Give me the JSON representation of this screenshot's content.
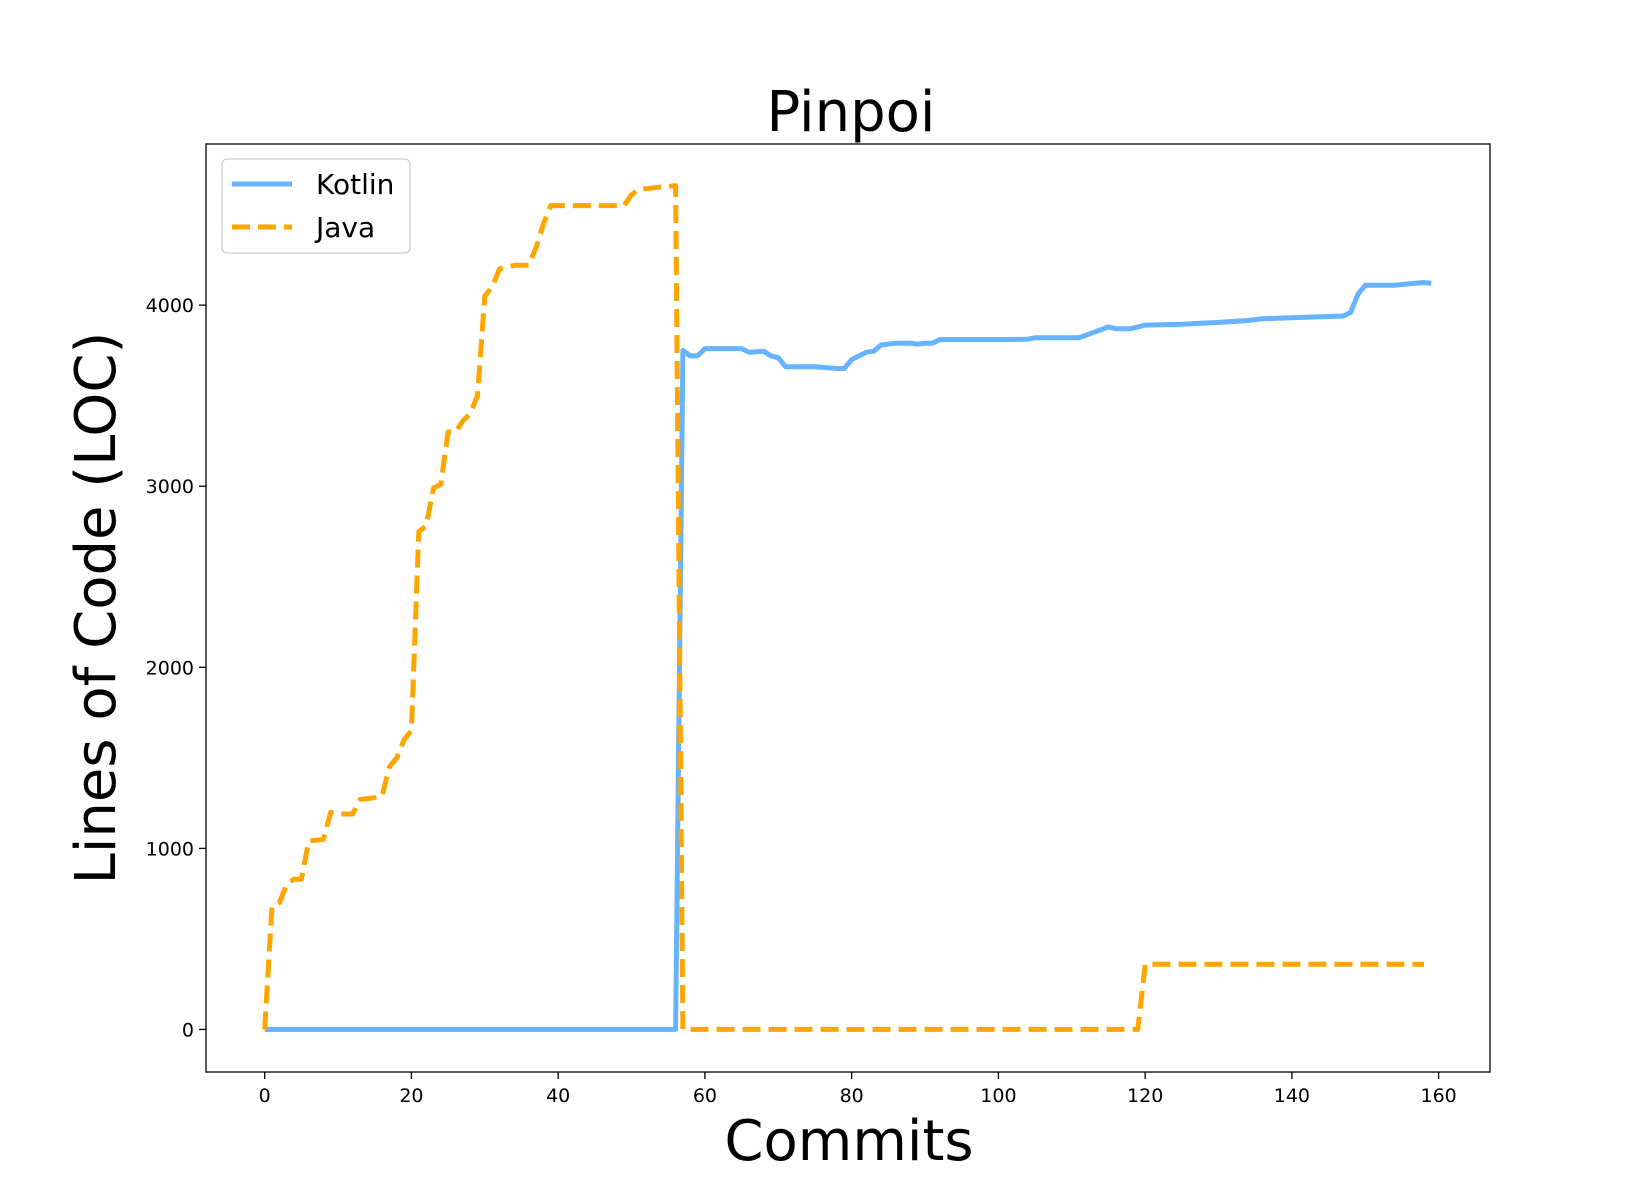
{
  "chart_data": {
    "type": "line",
    "title": "Pinpoi",
    "xlabel": "Commits",
    "ylabel": "Lines of Code (LOC)",
    "xlim": [
      -8,
      167
    ],
    "ylim": [
      -235,
      4890
    ],
    "xticks": [
      0,
      20,
      40,
      60,
      80,
      100,
      120,
      140,
      160
    ],
    "yticks": [
      0,
      1000,
      2000,
      3000,
      4000
    ],
    "grid": false,
    "legend_position": "top-left",
    "series": [
      {
        "name": "Kotlin",
        "color": "#66b3ff",
        "style": "solid",
        "points": [
          [
            0,
            0
          ],
          [
            56,
            0
          ],
          [
            57,
            3750
          ],
          [
            58,
            3720
          ],
          [
            59,
            3720
          ],
          [
            60,
            3760
          ],
          [
            65,
            3760
          ],
          [
            66,
            3740
          ],
          [
            68,
            3745
          ],
          [
            69,
            3720
          ],
          [
            70,
            3710
          ],
          [
            71,
            3660
          ],
          [
            75,
            3660
          ],
          [
            78,
            3650
          ],
          [
            79,
            3650
          ],
          [
            80,
            3700
          ],
          [
            82,
            3740
          ],
          [
            83,
            3745
          ],
          [
            84,
            3780
          ],
          [
            86,
            3790
          ],
          [
            88,
            3790
          ],
          [
            89,
            3785
          ],
          [
            90,
            3790
          ],
          [
            91,
            3790
          ],
          [
            92,
            3810
          ],
          [
            98,
            3810
          ],
          [
            100,
            3810
          ],
          [
            104,
            3812
          ],
          [
            105,
            3820
          ],
          [
            111,
            3820
          ],
          [
            113,
            3850
          ],
          [
            115,
            3880
          ],
          [
            116,
            3870
          ],
          [
            118,
            3870
          ],
          [
            120,
            3890
          ],
          [
            125,
            3895
          ],
          [
            130,
            3905
          ],
          [
            134,
            3915
          ],
          [
            136,
            3925
          ],
          [
            140,
            3930
          ],
          [
            147,
            3940
          ],
          [
            148,
            3960
          ],
          [
            149,
            4060
          ],
          [
            150,
            4110
          ],
          [
            154,
            4110
          ],
          [
            156,
            4118
          ],
          [
            158,
            4125
          ],
          [
            159,
            4120
          ]
        ]
      },
      {
        "name": "Java",
        "color": "#ffa500",
        "style": "dashed",
        "points": [
          [
            0,
            0
          ],
          [
            1,
            680
          ],
          [
            2,
            700
          ],
          [
            3,
            800
          ],
          [
            4,
            830
          ],
          [
            5,
            830
          ],
          [
            6,
            1040
          ],
          [
            8,
            1050
          ],
          [
            9,
            1200
          ],
          [
            10,
            1190
          ],
          [
            12,
            1190
          ],
          [
            13,
            1270
          ],
          [
            15,
            1280
          ],
          [
            16,
            1290
          ],
          [
            17,
            1450
          ],
          [
            18,
            1500
          ],
          [
            19,
            1600
          ],
          [
            20,
            1650
          ],
          [
            21,
            2750
          ],
          [
            22,
            2780
          ],
          [
            23,
            2990
          ],
          [
            24,
            3010
          ],
          [
            25,
            3300
          ],
          [
            26,
            3300
          ],
          [
            27,
            3360
          ],
          [
            28,
            3400
          ],
          [
            29,
            3500
          ],
          [
            30,
            4050
          ],
          [
            31,
            4100
          ],
          [
            32,
            4200
          ],
          [
            34,
            4220
          ],
          [
            36,
            4220
          ],
          [
            37,
            4320
          ],
          [
            38,
            4450
          ],
          [
            39,
            4550
          ],
          [
            44,
            4550
          ],
          [
            49,
            4550
          ],
          [
            50,
            4610
          ],
          [
            51,
            4640
          ],
          [
            56,
            4660
          ],
          [
            57,
            0
          ],
          [
            60,
            0
          ],
          [
            80,
            0
          ],
          [
            100,
            0
          ],
          [
            119,
            0
          ],
          [
            120,
            360
          ],
          [
            130,
            360
          ],
          [
            150,
            360
          ],
          [
            158,
            360
          ]
        ]
      }
    ]
  }
}
